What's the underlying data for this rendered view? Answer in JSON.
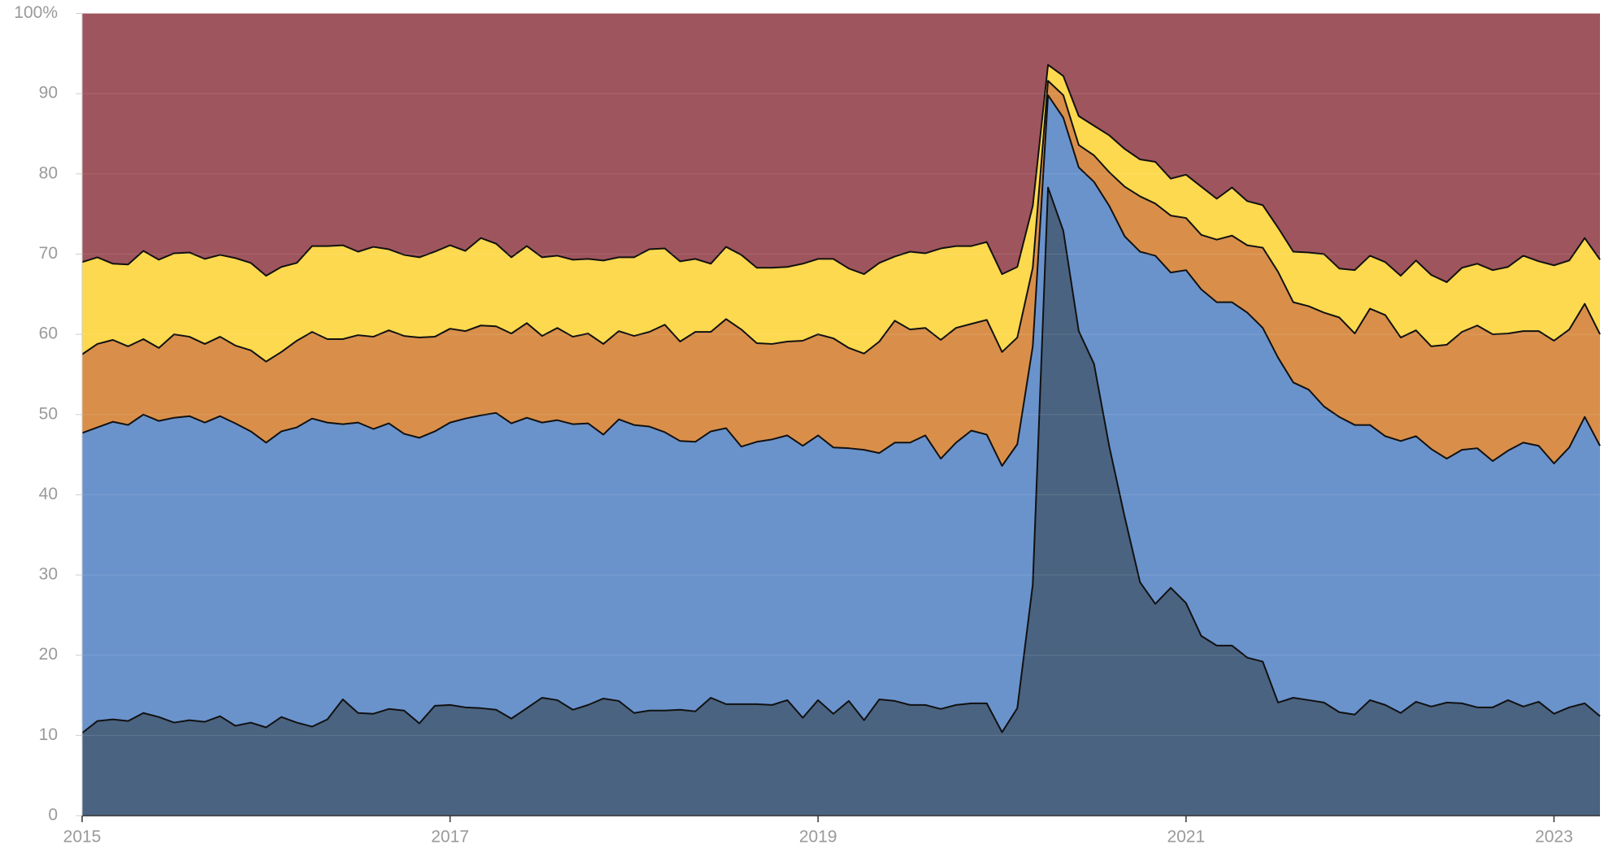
{
  "chart_data": {
    "type": "stacked_area",
    "x": [
      2015,
      2015.083,
      2015.167,
      2015.25,
      2015.333,
      2015.417,
      2015.5,
      2015.583,
      2015.667,
      2015.75,
      2015.833,
      2015.917,
      2016,
      2016.083,
      2016.167,
      2016.25,
      2016.333,
      2016.417,
      2016.5,
      2016.583,
      2016.667,
      2016.75,
      2016.833,
      2016.917,
      2017,
      2017.083,
      2017.167,
      2017.25,
      2017.333,
      2017.417,
      2017.5,
      2017.583,
      2017.667,
      2017.75,
      2017.833,
      2017.917,
      2018,
      2018.083,
      2018.167,
      2018.25,
      2018.333,
      2018.417,
      2018.5,
      2018.583,
      2018.667,
      2018.75,
      2018.833,
      2018.917,
      2019,
      2019.083,
      2019.167,
      2019.25,
      2019.333,
      2019.417,
      2019.5,
      2019.583,
      2019.667,
      2019.75,
      2019.833,
      2019.917,
      2020,
      2020.083,
      2020.167,
      2020.25,
      2020.333,
      2020.417,
      2020.5,
      2020.583,
      2020.667,
      2020.75,
      2020.833,
      2020.917,
      2021,
      2021.083,
      2021.167,
      2021.25,
      2021.333,
      2021.417,
      2021.5,
      2021.583,
      2021.667,
      2021.75,
      2021.833,
      2021.917,
      2022,
      2022.083,
      2022.167,
      2022.25,
      2022.333,
      2022.417,
      2022.5,
      2022.583,
      2022.667,
      2022.75,
      2022.833,
      2022.917,
      2023,
      2023.083,
      2023.167,
      2023.25
    ],
    "series": [
      {
        "color": "#4a6380",
        "values": [
          10.3,
          11.8,
          12,
          11.8,
          12.8,
          12.3,
          11.6,
          11.9,
          11.7,
          12.4,
          11.2,
          11.6,
          11.0,
          12.3,
          11.6,
          11.1,
          12.0,
          14.5,
          12.8,
          12.7,
          13.3,
          13.1,
          11.5,
          13.7,
          13.8,
          13.5,
          13.4,
          13.2,
          12.1,
          13.4,
          14.7,
          14.4,
          13.2,
          13.8,
          14.6,
          14.3,
          12.8,
          13.1,
          13.1,
          13.2,
          13.0,
          14.7,
          13.9,
          13.9,
          13.9,
          13.8,
          14.4,
          12.2,
          14.4,
          12.7,
          14.3,
          11.9,
          14.5,
          14.3,
          13.8,
          13.8,
          13.3,
          13.8,
          14.0,
          14.0,
          10.4,
          13.4,
          28.8,
          78.3,
          72.9,
          60.4,
          56.3,
          46.0,
          37.2,
          29.1,
          26.4,
          28.4,
          26.5,
          22.4,
          21.2,
          21.2,
          19.7,
          19.2,
          14.1,
          14.7,
          14.4,
          14.1,
          12.9,
          12.6,
          14.4,
          13.8,
          12.8,
          14.2,
          13.6,
          14.1,
          14.0,
          13.5,
          13.5,
          14.4,
          13.6,
          14.2,
          12.7,
          13.5,
          14.0,
          12.4
        ]
      },
      {
        "color": "#6a93cc",
        "values": [
          37.4,
          36.6,
          37.1,
          36.9,
          37.2,
          36.9,
          38.0,
          37.9,
          37.3,
          37.4,
          37.7,
          36.3,
          35.5,
          35.6,
          36.8,
          38.4,
          37.0,
          34.3,
          36.2,
          35.5,
          35.6,
          34.5,
          35.6,
          34.2,
          35.2,
          36.0,
          36.5,
          37.0,
          36.8,
          36.2,
          34.3,
          34.9,
          35.6,
          35.1,
          32.9,
          35.1,
          35.9,
          35.4,
          34.7,
          33.5,
          33.6,
          33.2,
          34.4,
          32.1,
          32.7,
          33.1,
          33.0,
          33.9,
          33.0,
          33.2,
          31.5,
          33.7,
          30.7,
          32.2,
          32.7,
          33.6,
          31.2,
          32.7,
          34.0,
          33.5,
          33.2,
          32.9,
          29.7,
          11.5,
          14.1,
          20.4,
          22.7,
          30.0,
          35.0,
          41.2,
          43.4,
          39.3,
          41.5,
          43.2,
          42.8,
          42.8,
          43.0,
          41.6,
          43.0,
          39.3,
          38.7,
          36.9,
          36.8,
          36.1,
          34.3,
          33.5,
          33.9,
          33.1,
          32.1,
          30.4,
          31.6,
          32.3,
          30.7,
          31.1,
          32.9,
          31.9,
          31.2,
          32.4,
          35.7,
          33.7
        ]
      },
      {
        "color": "#d98f4a",
        "values": [
          9.8,
          10.4,
          10.2,
          9.8,
          9.4,
          9.1,
          10.4,
          9.9,
          9.8,
          9.9,
          9.7,
          10.1,
          10.1,
          9.9,
          10.8,
          10.8,
          10.4,
          10.6,
          10.9,
          11.5,
          11.6,
          12.2,
          12.5,
          11.8,
          11.7,
          10.9,
          11.2,
          10.8,
          11.2,
          11.8,
          10.8,
          11.5,
          10.9,
          11.2,
          11.3,
          11.0,
          11.1,
          11.8,
          13.4,
          12.4,
          13.7,
          12.4,
          13.6,
          14.6,
          12.3,
          11.9,
          11.7,
          13.1,
          12.6,
          13.6,
          12.5,
          12.0,
          13.9,
          15.2,
          14.1,
          13.4,
          14.8,
          14.3,
          13.3,
          14.3,
          14.2,
          13.3,
          9.8,
          1.8,
          2.8,
          2.8,
          3.3,
          4.2,
          6.2,
          6.9,
          6.5,
          7.1,
          6.5,
          6.8,
          7.8,
          8.3,
          8.4,
          10.0,
          10.7,
          10.0,
          10.4,
          11.7,
          12.4,
          11.4,
          14.5,
          15.1,
          12.9,
          13.2,
          12.8,
          14.2,
          14.7,
          15.3,
          15.8,
          14.6,
          13.9,
          14.3,
          15.3,
          14.7,
          14.1,
          13.9
        ]
      },
      {
        "color": "#fdd94f",
        "values": [
          11.5,
          10.8,
          9.5,
          10.2,
          11.0,
          11.0,
          10.1,
          10.5,
          10.6,
          10.2,
          10.9,
          10.9,
          10.7,
          10.6,
          9.7,
          10.7,
          11.6,
          11.7,
          10.4,
          11.2,
          10.1,
          10.1,
          10.0,
          10.6,
          10.4,
          10.0,
          10.9,
          10.3,
          9.5,
          9.6,
          9.8,
          9.0,
          9.6,
          9.3,
          10.4,
          9.2,
          9.8,
          10.3,
          9.5,
          10.0,
          9.1,
          8.5,
          9.0,
          9.3,
          9.4,
          9.5,
          9.3,
          9.6,
          9.4,
          9.9,
          9.9,
          9.9,
          9.8,
          8.0,
          9.7,
          9.3,
          11.4,
          10.2,
          9.7,
          9.7,
          9.7,
          8.8,
          7.7,
          2.0,
          2.4,
          3.6,
          3.7,
          4.6,
          4.7,
          4.6,
          5.2,
          4.6,
          5.4,
          6.0,
          5.1,
          6.0,
          5.5,
          5.3,
          5.5,
          6.3,
          6.7,
          7.3,
          6.1,
          7.9,
          6.6,
          6.6,
          7.7,
          8.7,
          8.9,
          7.8,
          8.0,
          7.7,
          8.0,
          8.3,
          9.4,
          8.7,
          9.4,
          8.6,
          8.2,
          9.3
        ]
      },
      {
        "color": "#9f555d",
        "values": [
          31.0,
          30.4,
          31.2,
          31.3,
          29.6,
          30.7,
          29.9,
          29.8,
          30.6,
          30.1,
          30.5,
          31.1,
          32.7,
          31.6,
          31.1,
          29.0,
          29.0,
          28.9,
          29.7,
          29.1,
          29.4,
          30.1,
          30.4,
          29.7,
          28.9,
          29.6,
          28.0,
          28.7,
          30.4,
          29.0,
          30.4,
          30.2,
          30.7,
          30.6,
          30.8,
          30.4,
          30.4,
          29.4,
          29.3,
          30.9,
          30.6,
          31.2,
          29.1,
          30.1,
          31.7,
          31.7,
          31.6,
          31.2,
          30.6,
          30.6,
          31.8,
          32.5,
          31.1,
          30.3,
          29.7,
          29.9,
          29.3,
          29.0,
          29.0,
          28.5,
          32.5,
          31.6,
          24.0,
          6.4,
          7.8,
          12.8,
          14.0,
          15.2,
          16.9,
          18.2,
          18.5,
          20.6,
          20.1,
          21.6,
          23.1,
          21.7,
          23.4,
          23.9,
          26.7,
          29.7,
          29.8,
          30.0,
          31.8,
          32.0,
          30.2,
          31.0,
          32.7,
          30.8,
          32.6,
          33.5,
          31.7,
          31.2,
          32.0,
          31.6,
          30.2,
          30.9,
          31.4,
          30.8,
          28.0,
          30.7
        ]
      }
    ],
    "xlim": [
      2015,
      2023.25
    ],
    "xticks": [
      2015,
      2017,
      2019,
      2021,
      2023
    ],
    "ylim": [
      0,
      100
    ],
    "yticks": [
      0,
      10,
      20,
      30,
      40,
      50,
      60,
      70,
      80,
      90,
      {
        "value": 100,
        "label": "100%"
      }
    ],
    "grid": true
  }
}
